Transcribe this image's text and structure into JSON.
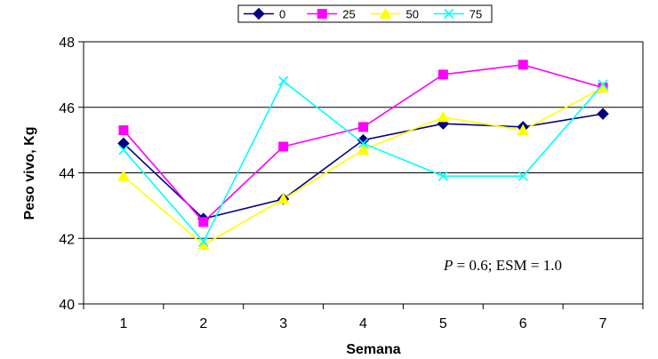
{
  "chart_data": {
    "type": "line",
    "xlabel": "Semana",
    "ylabel": "Peso vivo, Kg",
    "x": [
      1,
      2,
      3,
      4,
      5,
      6,
      7
    ],
    "ylim": [
      40,
      48
    ],
    "yticks": [
      40,
      42,
      44,
      46,
      48
    ],
    "grid": "horizontal",
    "legend_position": "top",
    "annotation": {
      "p_symbol": "P",
      "p_value": " = 0.6;  ESM = 1.0"
    },
    "series": [
      {
        "name": "0",
        "color": "#000080",
        "marker": "diamond",
        "values": [
          44.9,
          42.6,
          43.2,
          45.0,
          45.5,
          45.4,
          45.8
        ]
      },
      {
        "name": "25",
        "color": "#FF00FF",
        "marker": "square",
        "values": [
          45.3,
          42.5,
          44.8,
          45.4,
          47.0,
          47.3,
          46.6
        ]
      },
      {
        "name": "50",
        "color": "#FFFF00",
        "marker": "triangle",
        "values": [
          43.9,
          41.8,
          43.2,
          44.7,
          45.7,
          45.3,
          46.6
        ]
      },
      {
        "name": "75",
        "color": "#00FFFF",
        "marker": "x",
        "values": [
          44.7,
          41.9,
          46.8,
          44.9,
          43.9,
          43.9,
          46.7
        ]
      }
    ]
  }
}
